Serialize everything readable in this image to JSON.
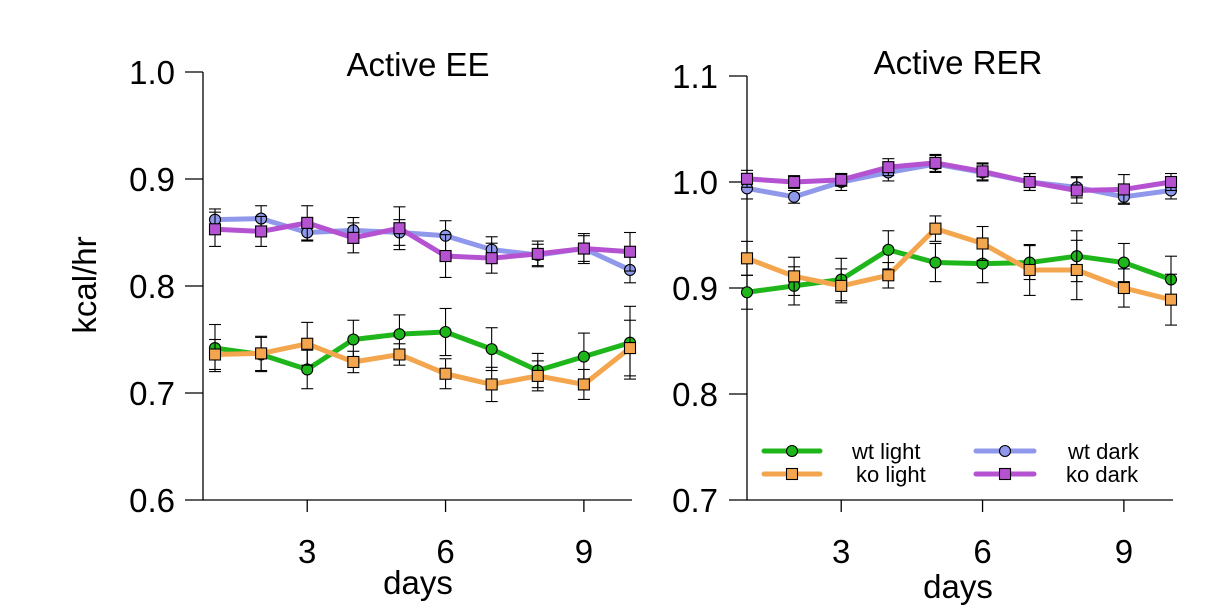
{
  "chart_data": [
    {
      "type": "line",
      "title": "Active EE",
      "xlabel": "days",
      "ylabel": "kcal/hr",
      "x": [
        1,
        2,
        3,
        4,
        5,
        6,
        7,
        8,
        9,
        10
      ],
      "xlim": [
        1,
        10
      ],
      "xticks": [
        3,
        6,
        9
      ],
      "ylim": [
        0.6,
        1.0
      ],
      "yticks": [
        0.6,
        0.7,
        0.8,
        0.9,
        1.0
      ],
      "ytick_labels": [
        "0.6",
        "0.7",
        "0.8",
        "0.9",
        "1.0"
      ],
      "series": [
        {
          "name": "wt dark",
          "color": "#8f98ea",
          "marker": "circle",
          "values": [
            0.862,
            0.863,
            0.85,
            0.852,
            0.85,
            0.847,
            0.834,
            0.829,
            0.835,
            0.815
          ],
          "errors": [
            0.01,
            0.012,
            0.008,
            0.012,
            0.012,
            0.014,
            0.012,
            0.01,
            0.012,
            0.012
          ]
        },
        {
          "name": "ko dark",
          "color": "#b452d2",
          "marker": "square",
          "values": [
            0.853,
            0.851,
            0.859,
            0.845,
            0.854,
            0.828,
            0.826,
            0.83,
            0.835,
            0.832
          ],
          "errors": [
            0.016,
            0.014,
            0.016,
            0.014,
            0.02,
            0.02,
            0.014,
            0.012,
            0.014,
            0.018
          ]
        },
        {
          "name": "wt light",
          "color": "#1fb61b",
          "marker": "circle",
          "values": [
            0.742,
            0.736,
            0.722,
            0.75,
            0.755,
            0.757,
            0.741,
            0.721,
            0.734,
            0.747
          ],
          "errors": [
            0.022,
            0.016,
            0.018,
            0.018,
            0.018,
            0.022,
            0.02,
            0.016,
            0.022,
            0.034
          ]
        },
        {
          "name": "ko light",
          "color": "#f4a64f",
          "marker": "square",
          "values": [
            0.736,
            0.737,
            0.746,
            0.729,
            0.736,
            0.718,
            0.708,
            0.716,
            0.708,
            0.742
          ],
          "errors": [
            0.014,
            0.016,
            0.02,
            0.01,
            0.01,
            0.014,
            0.016,
            0.014,
            0.014,
            0.026
          ]
        }
      ]
    },
    {
      "type": "line",
      "title": "Active RER",
      "xlabel": "days",
      "ylabel": "",
      "x": [
        1,
        2,
        3,
        4,
        5,
        6,
        7,
        8,
        9,
        10
      ],
      "xlim": [
        1,
        10
      ],
      "xticks": [
        3,
        6,
        9
      ],
      "ylim": [
        0.7,
        1.1
      ],
      "yticks": [
        0.7,
        0.8,
        0.9,
        1.0,
        1.1
      ],
      "ytick_labels": [
        "0.7",
        "0.8",
        "0.9",
        "1.0",
        "1.1"
      ],
      "legend": {
        "placement": "bottom",
        "columns": 2
      },
      "series": [
        {
          "name": "wt light",
          "color": "#1fb61b",
          "marker": "circle",
          "values": [
            0.896,
            0.902,
            0.908,
            0.936,
            0.924,
            0.923,
            0.924,
            0.93,
            0.924,
            0.908
          ],
          "errors": [
            0.016,
            0.018,
            0.02,
            0.018,
            0.018,
            0.018,
            0.016,
            0.024,
            0.018,
            0.022
          ]
        },
        {
          "name": "ko light",
          "color": "#f4a64f",
          "marker": "square",
          "values": [
            0.928,
            0.911,
            0.902,
            0.912,
            0.956,
            0.942,
            0.917,
            0.917,
            0.9,
            0.889
          ],
          "errors": [
            0.016,
            0.018,
            0.016,
            0.012,
            0.012,
            0.016,
            0.024,
            0.028,
            0.018,
            0.024
          ]
        },
        {
          "name": "wt dark",
          "color": "#8f98ea",
          "marker": "circle",
          "values": [
            0.994,
            0.986,
            1.0,
            1.009,
            1.017,
            1.009,
            1.0,
            0.995,
            0.986,
            0.992
          ],
          "errors": [
            0.01,
            0.006,
            0.008,
            0.008,
            0.008,
            0.008,
            0.008,
            0.01,
            0.006,
            0.008
          ]
        },
        {
          "name": "ko dark",
          "color": "#b452d2",
          "marker": "square",
          "values": [
            1.003,
            1.0,
            1.002,
            1.014,
            1.018,
            1.01,
            1.0,
            0.992,
            0.993,
            1.0
          ],
          "errors": [
            0.008,
            0.006,
            0.006,
            0.008,
            0.008,
            0.008,
            0.008,
            0.012,
            0.014,
            0.008
          ]
        }
      ]
    }
  ]
}
